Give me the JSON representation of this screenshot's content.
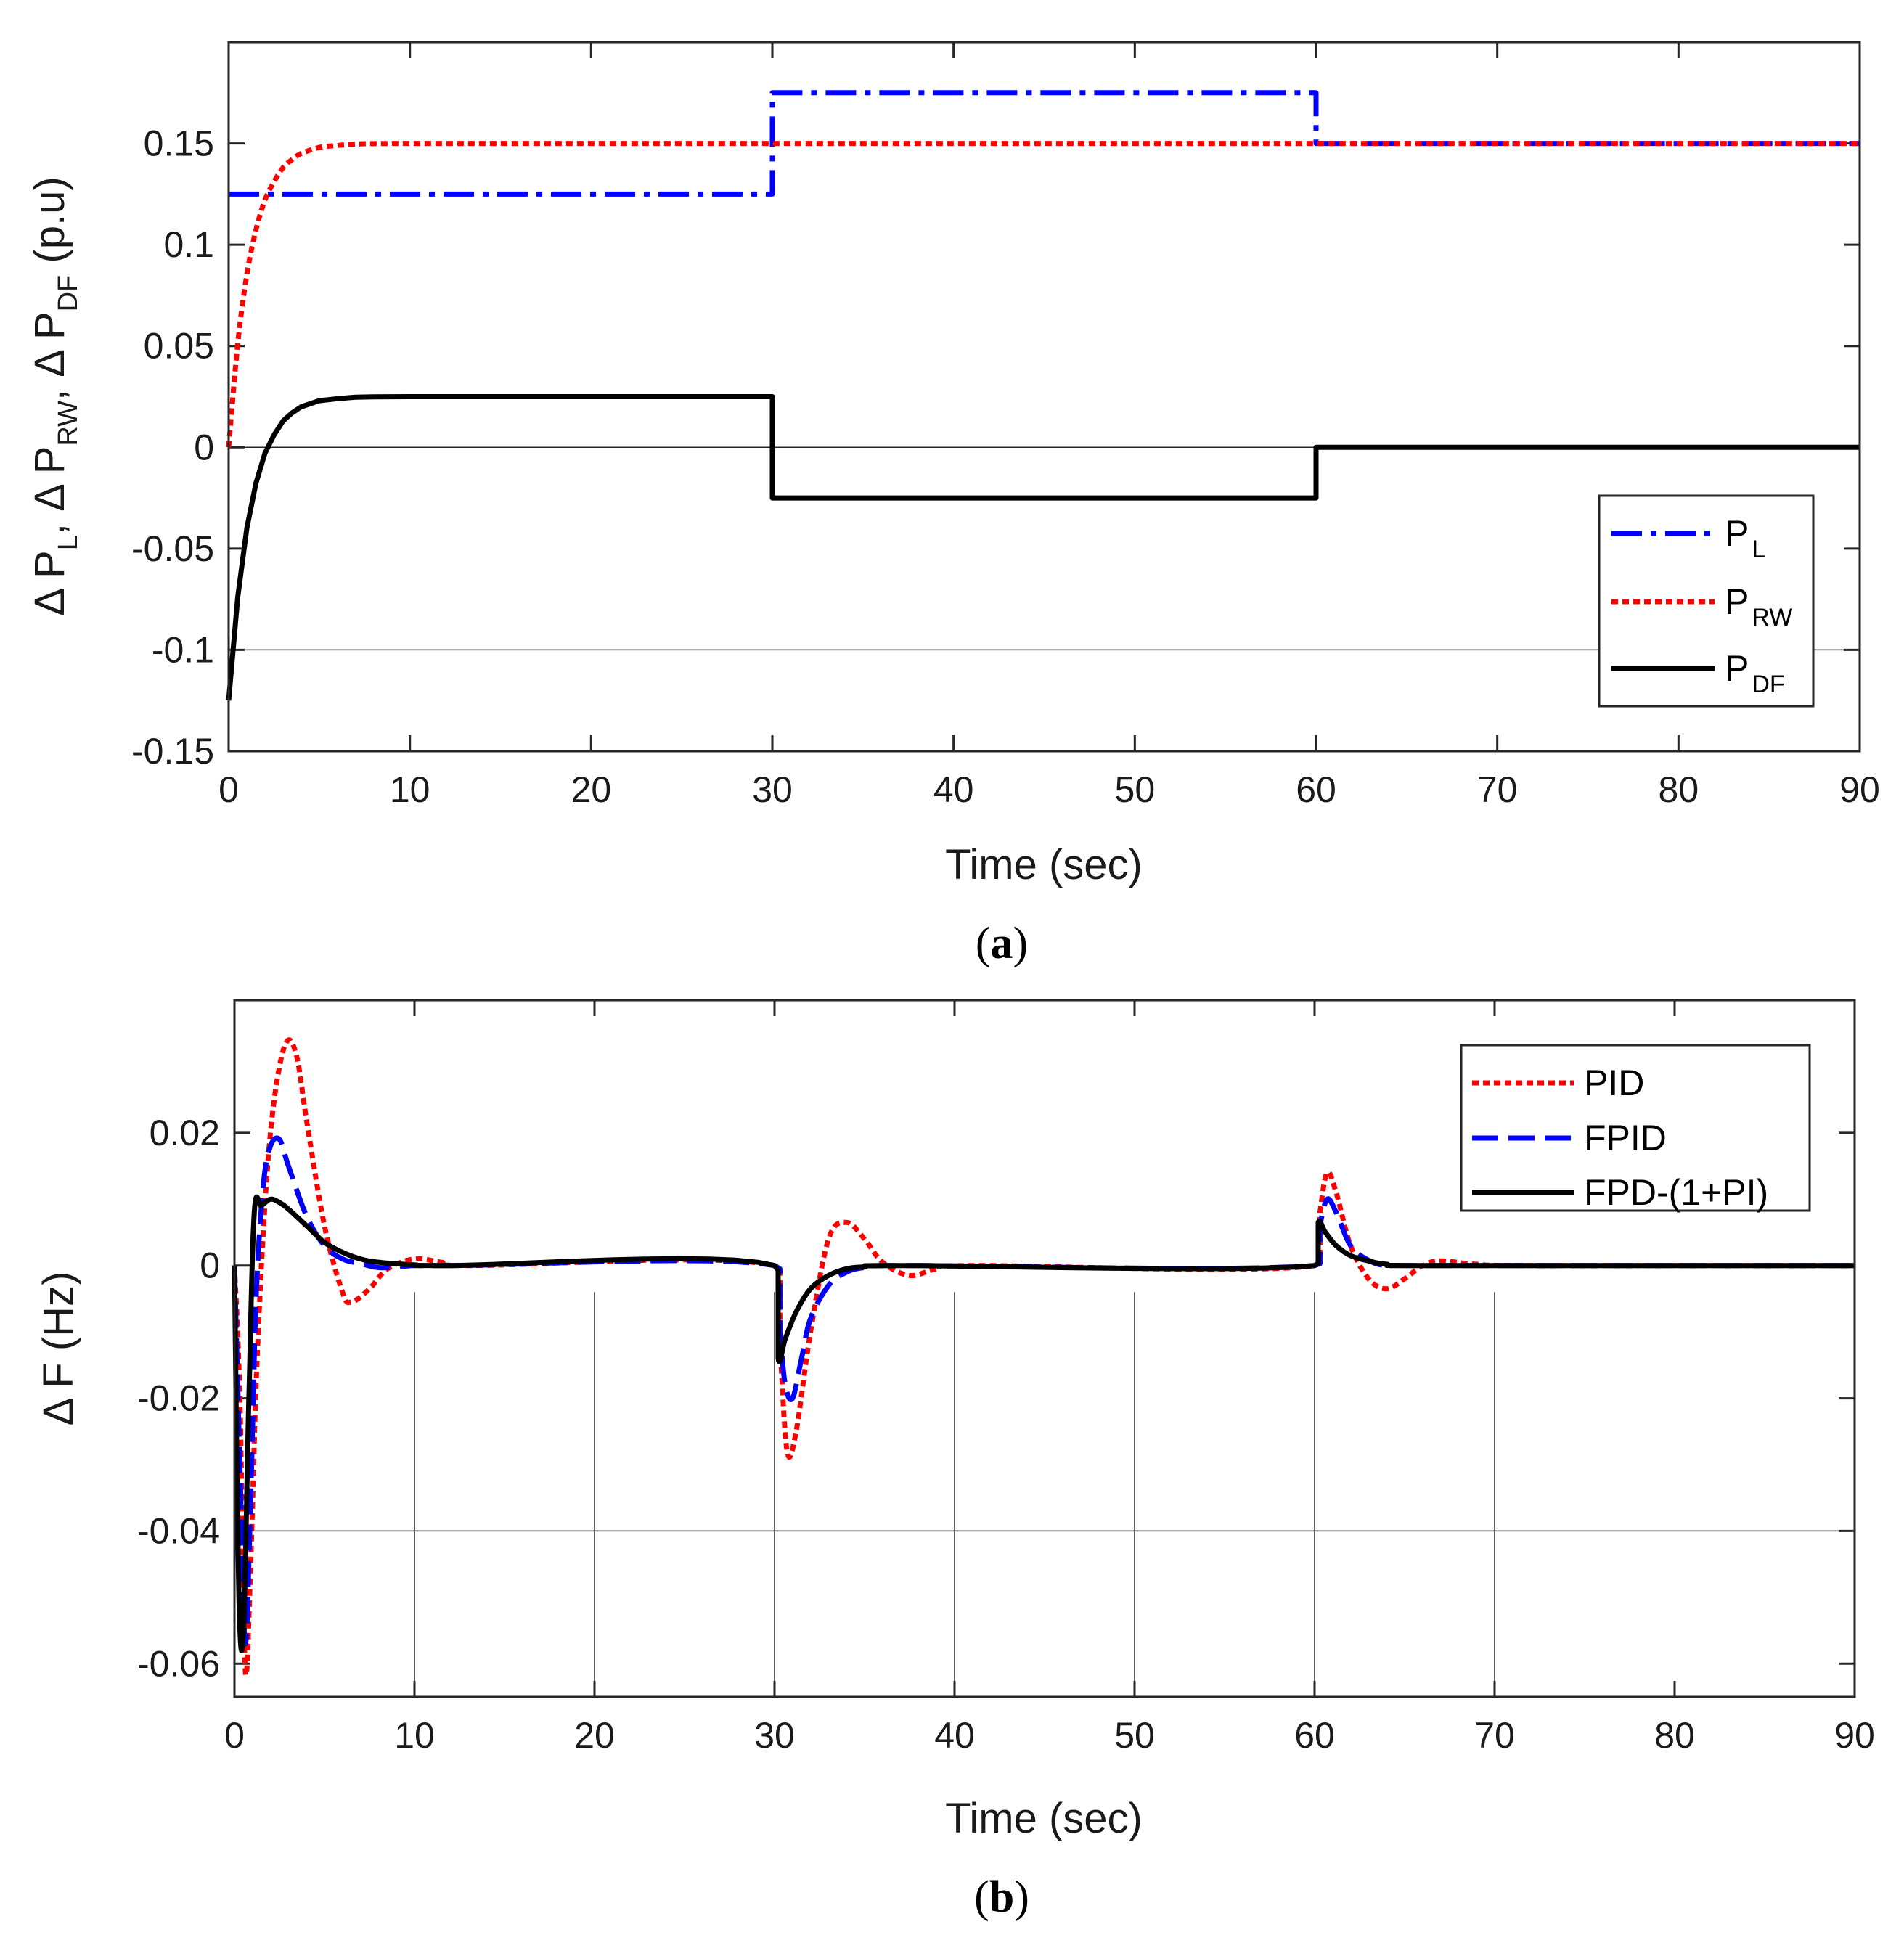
{
  "colors": {
    "blue": "#0000ff",
    "red": "#ff0000",
    "black": "#000000",
    "grid": "#262626"
  },
  "chart_data": [
    {
      "type": "line",
      "caption": {
        "open": "(",
        "letter": "a",
        "close": ")"
      },
      "xlabel": "Time (sec)",
      "ylabel_parts": {
        "d1": "Δ P",
        "s1": "L",
        "d2": ", Δ P",
        "s2": "RW",
        "d3": ", Δ P",
        "s3": "DF",
        "unit": " (p.u)"
      },
      "xlim": [
        0,
        90
      ],
      "ylim": [
        -0.15,
        0.2
      ],
      "xticks": [
        0,
        10,
        20,
        30,
        40,
        50,
        60,
        70,
        80,
        90
      ],
      "yticks": [
        -0.15,
        -0.1,
        -0.05,
        0,
        0.05,
        0.1,
        0.15
      ],
      "xtick_labels": [
        "0",
        "10",
        "20",
        "30",
        "40",
        "50",
        "60",
        "70",
        "80",
        "90"
      ],
      "ytick_labels": [
        "-0.15",
        "-0.1",
        "-0.05",
        "0",
        "0.05",
        "0.1",
        "0.15"
      ],
      "hgrid_at": [
        0,
        -0.1
      ],
      "legend_position": "bottom-right",
      "series": [
        {
          "name": "P",
          "sub": "L",
          "color_key": "blue",
          "style": "dashdot",
          "x": [
            0,
            30,
            30,
            60,
            60,
            90
          ],
          "y": [
            0.125,
            0.125,
            0.175,
            0.175,
            0.15,
            0.15
          ]
        },
        {
          "name": "P",
          "sub": "RW",
          "color_key": "red",
          "style": "dotted",
          "x": [
            0,
            0.5,
            1,
            1.5,
            2,
            2.5,
            3,
            3.5,
            4,
            5,
            6,
            7,
            8,
            10,
            15,
            30,
            60,
            90
          ],
          "y": [
            0,
            0.051,
            0.085,
            0.107,
            0.122,
            0.131,
            0.138,
            0.142,
            0.145,
            0.148,
            0.149,
            0.1497,
            0.1499,
            0.15,
            0.15,
            0.15,
            0.15,
            0.15
          ]
        },
        {
          "name": "P",
          "sub": "DF",
          "color_key": "black",
          "style": "solid",
          "x": [
            0,
            0.5,
            1,
            1.5,
            2,
            2.5,
            3,
            3.5,
            4,
            5,
            6,
            7,
            8,
            10,
            15,
            30,
            30,
            60,
            60,
            90
          ],
          "y": [
            -0.125,
            -0.074,
            -0.04,
            -0.018,
            -0.003,
            0.006,
            0.013,
            0.017,
            0.02,
            0.023,
            0.024,
            0.0247,
            0.0249,
            0.025,
            0.025,
            0.025,
            -0.025,
            -0.025,
            0,
            0
          ]
        }
      ]
    },
    {
      "type": "line",
      "caption": {
        "open": "(",
        "letter": "b",
        "close": ")"
      },
      "xlabel": "Time (sec)",
      "ylabel": "Δ F (Hz)",
      "xlim": [
        0,
        90
      ],
      "ylim": [
        -0.065,
        0.04
      ],
      "xticks": [
        0,
        10,
        20,
        30,
        40,
        50,
        60,
        70,
        80,
        90
      ],
      "yticks": [
        -0.06,
        -0.04,
        -0.02,
        0,
        0.02
      ],
      "xtick_labels": [
        "0",
        "10",
        "20",
        "30",
        "40",
        "50",
        "60",
        "70",
        "80",
        "90"
      ],
      "ytick_labels": [
        "-0.06",
        "-0.04",
        "-0.02",
        "0",
        "0.02"
      ],
      "hgrid_at": [
        -0.04
      ],
      "vgrid_at": [
        10,
        20,
        30,
        40,
        50,
        60,
        70
      ],
      "vgrid_top_value": -0.004,
      "legend_position": "top-right",
      "series": [
        {
          "name": "PID",
          "color_key": "red",
          "style": "dotted",
          "x": [
            0,
            0.3,
            0.6,
            0.9,
            1.2,
            1.6,
            2,
            2.5,
            3,
            3.5,
            4,
            5,
            6,
            6.5,
            7.5,
            8.5,
            10,
            11.5,
            13,
            30,
            30.3,
            30.7,
            31.2,
            32,
            33,
            34,
            35,
            36,
            37.5,
            39,
            41,
            60,
            60.3,
            60.7,
            61.2,
            62,
            63,
            64,
            65,
            66,
            67,
            69,
            72,
            90
          ],
          "y": [
            0,
            -0.02,
            -0.061,
            -0.045,
            -0.018,
            0.005,
            0.02,
            0.03,
            0.034,
            0.031,
            0.022,
            0.006,
            -0.004,
            -0.0055,
            -0.0035,
            -0.0005,
            0.001,
            0.0005,
            0,
            0,
            -0.012,
            -0.028,
            -0.025,
            -0.01,
            0.004,
            0.0065,
            0.004,
            0.0005,
            -0.0015,
            -0.0005,
            0,
            0,
            0.008,
            0.014,
            0.011,
            0.003,
            -0.002,
            -0.0035,
            -0.002,
            0,
            0.0007,
            0.0002,
            0,
            0
          ]
        },
        {
          "name": "FPID",
          "color_key": "blue",
          "style": "dashed",
          "x": [
            0,
            0.3,
            0.6,
            0.9,
            1.2,
            1.6,
            2,
            2.5,
            3,
            4,
            5,
            6,
            7,
            8,
            9,
            10,
            12,
            30,
            30.3,
            30.6,
            31,
            31.5,
            32,
            33,
            34,
            35,
            37,
            60,
            60.3,
            60.7,
            61.2,
            62,
            63,
            64,
            66,
            90
          ],
          "y": [
            0,
            -0.03,
            -0.057,
            -0.035,
            -0.005,
            0.012,
            0.018,
            0.019,
            0.015,
            0.0075,
            0.003,
            0.001,
            0.0003,
            -0.0003,
            -0.0002,
            0,
            0,
            0,
            -0.01,
            -0.018,
            -0.02,
            -0.014,
            -0.008,
            -0.003,
            -0.001,
            -0.0003,
            0,
            0,
            0.006,
            0.01,
            0.008,
            0.003,
            0.0008,
            0,
            0,
            0
          ]
        },
        {
          "name": "FPD-(1+PI)",
          "color_key": "black",
          "style": "solid",
          "x": [
            0,
            0.25,
            0.5,
            0.8,
            1.1,
            1.5,
            2,
            2.5,
            3,
            4,
            5,
            6,
            7,
            8,
            10,
            12,
            30,
            30.2,
            30.6,
            31.2,
            32,
            33,
            34,
            35,
            37,
            60,
            60.2,
            60.6,
            61.2,
            62,
            63,
            64,
            66,
            90
          ],
          "y": [
            0,
            -0.05,
            -0.055,
            -0.02,
            0.008,
            0.009,
            0.01,
            0.0095,
            0.0085,
            0.006,
            0.0035,
            0.002,
            0.001,
            0.0005,
            0.0001,
            0,
            0,
            -0.014,
            -0.011,
            -0.007,
            -0.0035,
            -0.0015,
            -0.0005,
            -0.0002,
            0,
            0,
            0.0065,
            0.005,
            0.003,
            0.0015,
            0.0007,
            0.0002,
            0,
            0
          ]
        }
      ]
    }
  ]
}
